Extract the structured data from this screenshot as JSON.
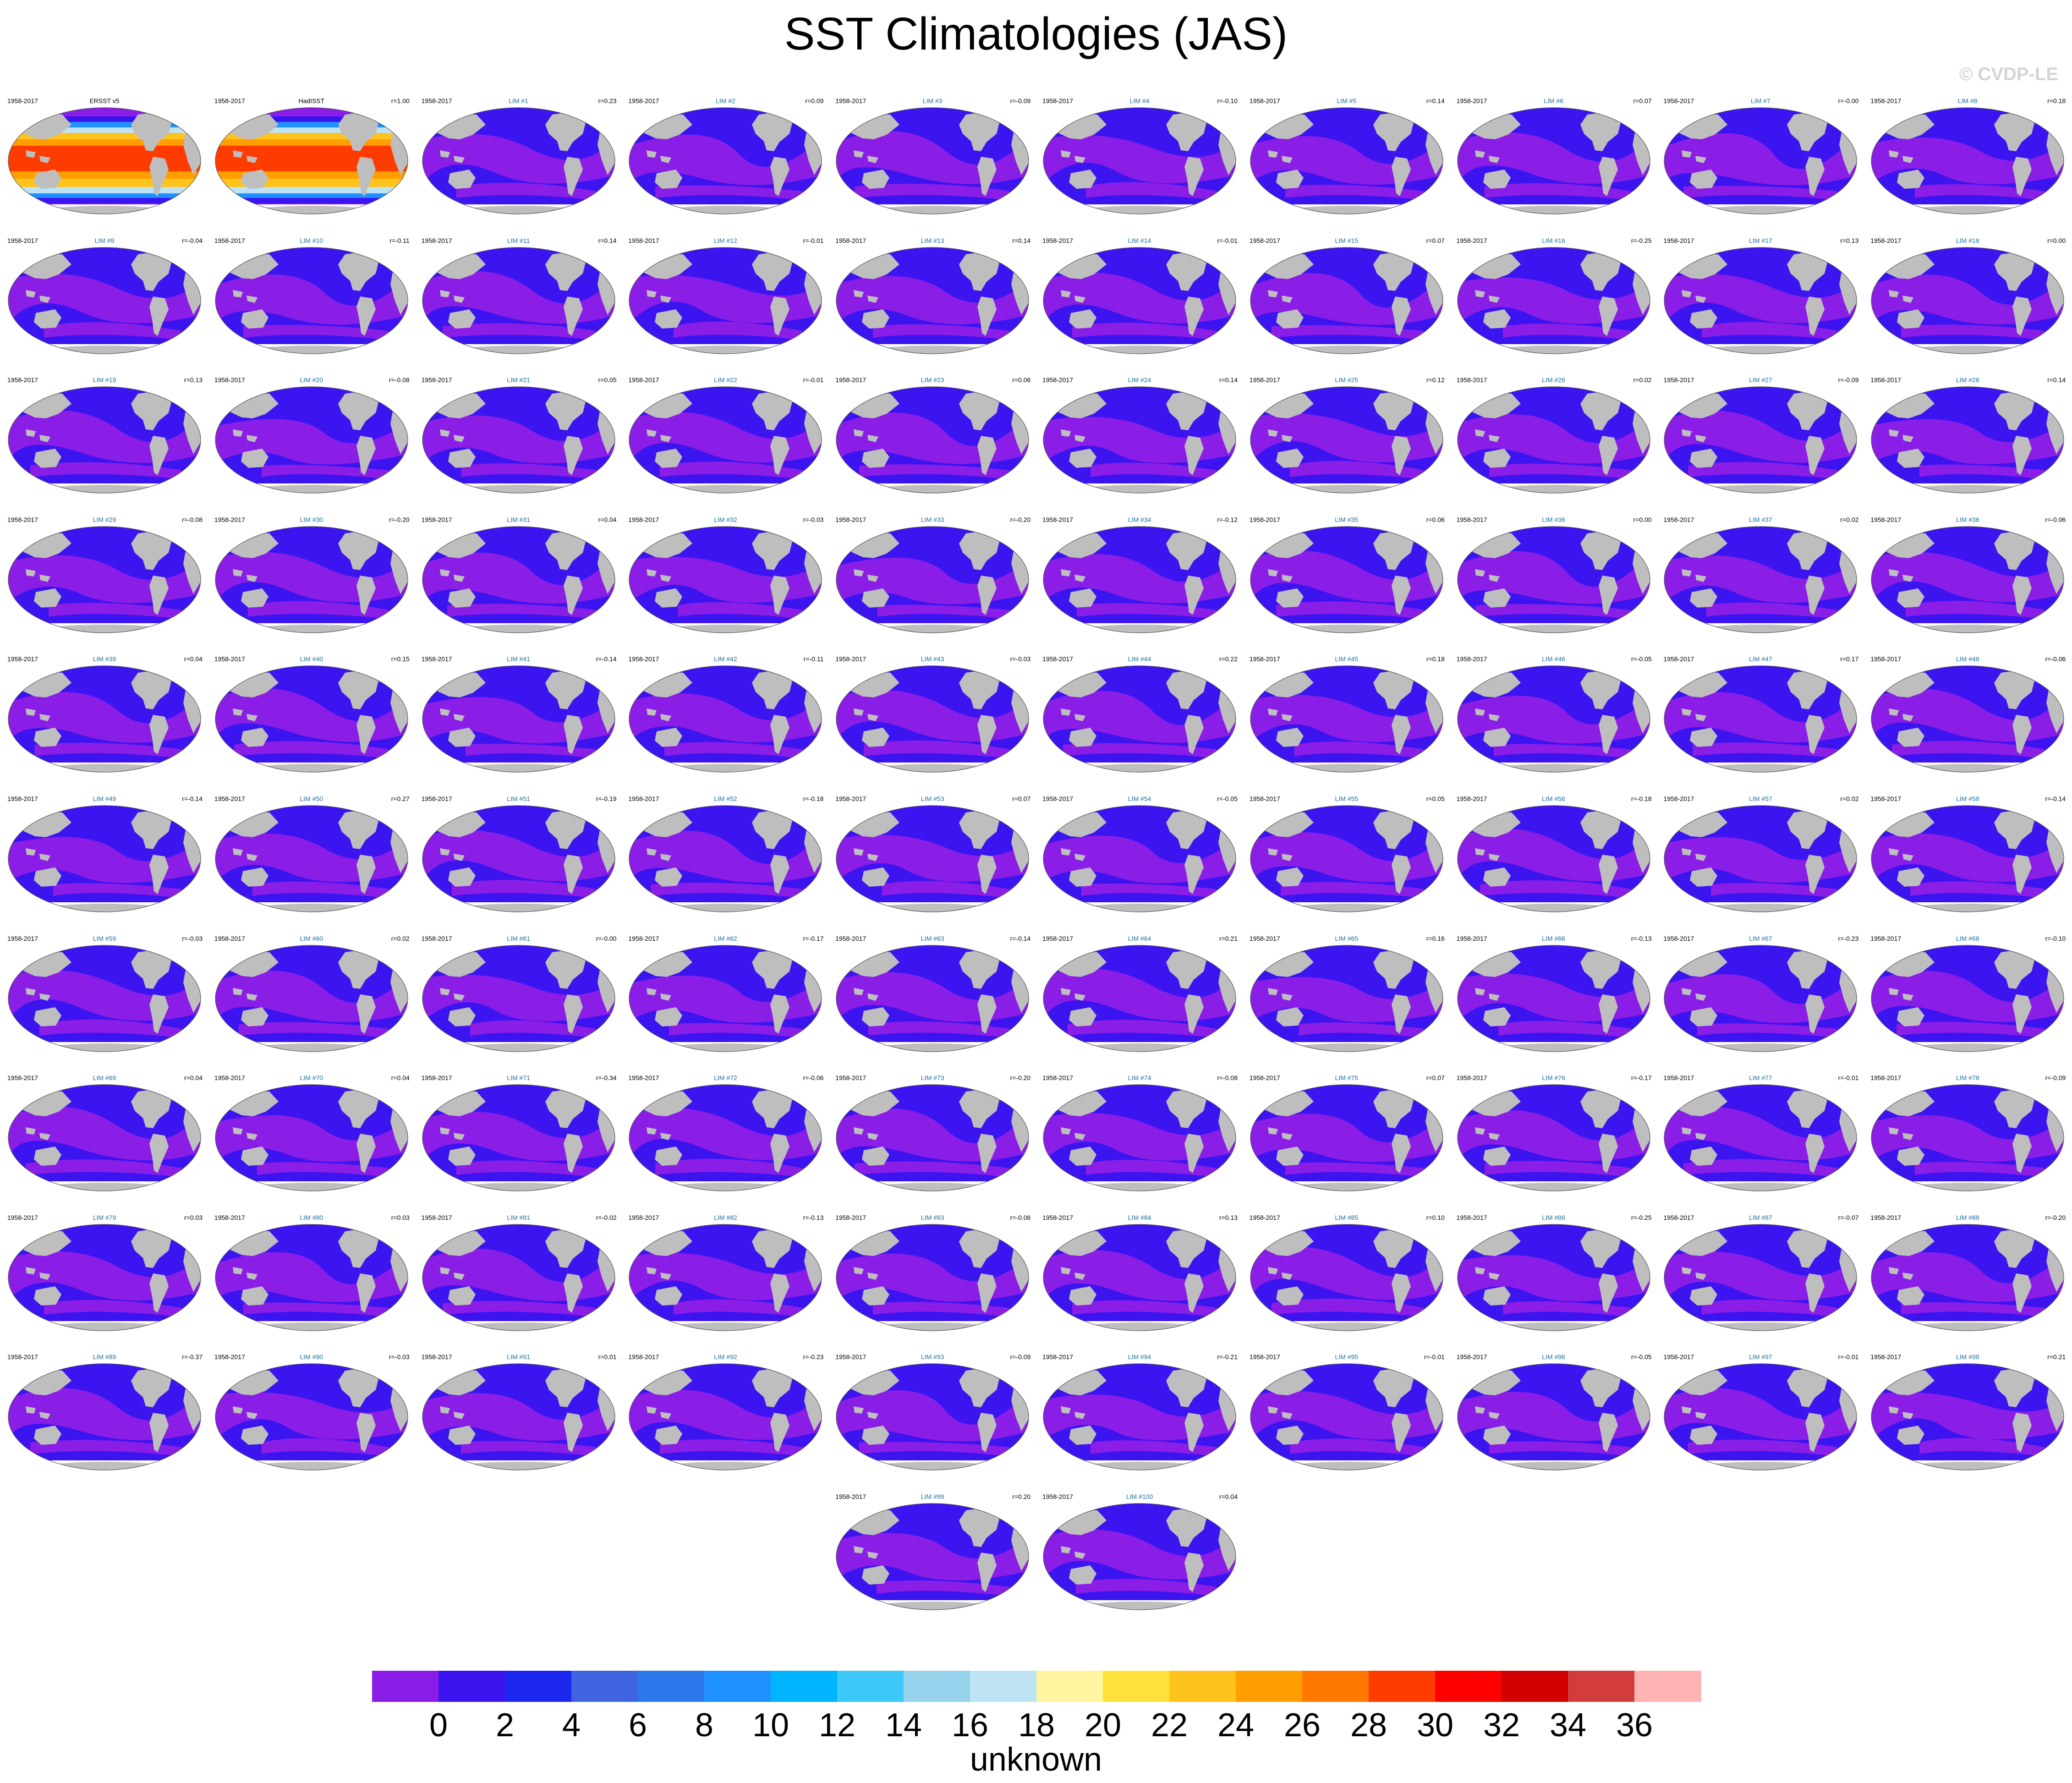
{
  "title": "SST Climatologies (JAS)",
  "watermark": "© CVDP-LE",
  "period": "1958-2017",
  "land_color": "#bebebe",
  "panels": [
    {
      "name": "ERSST v5",
      "corr": "",
      "kind": "obs"
    },
    {
      "name": "HadISST",
      "corr": "r=1.00",
      "kind": "obs"
    },
    {
      "name": "LIM #1",
      "corr": "r=0.23",
      "kind": "model"
    },
    {
      "name": "LIM #2",
      "corr": "r=0.09",
      "kind": "model"
    },
    {
      "name": "LIM #3",
      "corr": "r=-0.09",
      "kind": "model"
    },
    {
      "name": "LIM #4",
      "corr": "r=-0.10",
      "kind": "model"
    },
    {
      "name": "LIM #5",
      "corr": "r=0.14",
      "kind": "model"
    },
    {
      "name": "LIM #6",
      "corr": "r=0.07",
      "kind": "model"
    },
    {
      "name": "LIM #7",
      "corr": "r=-0.00",
      "kind": "model"
    },
    {
      "name": "LIM #8",
      "corr": "r=0.18",
      "kind": "model"
    },
    {
      "name": "LIM #9",
      "corr": "r=-0.04",
      "kind": "model"
    },
    {
      "name": "LIM #10",
      "corr": "r=-0.11",
      "kind": "model"
    },
    {
      "name": "LIM #11",
      "corr": "r=0.14",
      "kind": "model"
    },
    {
      "name": "LIM #12",
      "corr": "r=-0.01",
      "kind": "model"
    },
    {
      "name": "LIM #13",
      "corr": "r=0.14",
      "kind": "model"
    },
    {
      "name": "LIM #14",
      "corr": "r=-0.01",
      "kind": "model"
    },
    {
      "name": "LIM #15",
      "corr": "r=0.07",
      "kind": "model"
    },
    {
      "name": "LIM #16",
      "corr": "r=-0.25",
      "kind": "model"
    },
    {
      "name": "LIM #17",
      "corr": "r=0.13",
      "kind": "model"
    },
    {
      "name": "LIM #18",
      "corr": "r=0.00",
      "kind": "model"
    },
    {
      "name": "LIM #19",
      "corr": "r=0.13",
      "kind": "model"
    },
    {
      "name": "LIM #20",
      "corr": "r=-0.08",
      "kind": "model"
    },
    {
      "name": "LIM #21",
      "corr": "r=0.05",
      "kind": "model"
    },
    {
      "name": "LIM #22",
      "corr": "r=-0.01",
      "kind": "model"
    },
    {
      "name": "LIM #23",
      "corr": "r=0.06",
      "kind": "model"
    },
    {
      "name": "LIM #24",
      "corr": "r=0.14",
      "kind": "model"
    },
    {
      "name": "LIM #25",
      "corr": "r=0.12",
      "kind": "model"
    },
    {
      "name": "LIM #26",
      "corr": "r=0.02",
      "kind": "model"
    },
    {
      "name": "LIM #27",
      "corr": "r=-0.09",
      "kind": "model"
    },
    {
      "name": "LIM #28",
      "corr": "r=0.14",
      "kind": "model"
    },
    {
      "name": "LIM #29",
      "corr": "r=-0.08",
      "kind": "model"
    },
    {
      "name": "LIM #30",
      "corr": "r=-0.20",
      "kind": "model"
    },
    {
      "name": "LIM #31",
      "corr": "r=0.04",
      "kind": "model"
    },
    {
      "name": "LIM #32",
      "corr": "r=-0.03",
      "kind": "model"
    },
    {
      "name": "LIM #33",
      "corr": "r=-0.20",
      "kind": "model"
    },
    {
      "name": "LIM #34",
      "corr": "r=-0.12",
      "kind": "model"
    },
    {
      "name": "LIM #35",
      "corr": "r=0.06",
      "kind": "model"
    },
    {
      "name": "LIM #36",
      "corr": "r=0.00",
      "kind": "model"
    },
    {
      "name": "LIM #37",
      "corr": "r=0.02",
      "kind": "model"
    },
    {
      "name": "LIM #38",
      "corr": "r=-0.06",
      "kind": "model"
    },
    {
      "name": "LIM #39",
      "corr": "r=0.04",
      "kind": "model"
    },
    {
      "name": "LIM #40",
      "corr": "r=0.15",
      "kind": "model"
    },
    {
      "name": "LIM #41",
      "corr": "r=-0.14",
      "kind": "model"
    },
    {
      "name": "LIM #42",
      "corr": "r=-0.11",
      "kind": "model"
    },
    {
      "name": "LIM #43",
      "corr": "r=-0.03",
      "kind": "model"
    },
    {
      "name": "LIM #44",
      "corr": "r=0.22",
      "kind": "model"
    },
    {
      "name": "LIM #45",
      "corr": "r=0.18",
      "kind": "model"
    },
    {
      "name": "LIM #46",
      "corr": "r=-0.05",
      "kind": "model"
    },
    {
      "name": "LIM #47",
      "corr": "r=0.17",
      "kind": "model"
    },
    {
      "name": "LIM #48",
      "corr": "r=-0.06",
      "kind": "model"
    },
    {
      "name": "LIM #49",
      "corr": "r=-0.14",
      "kind": "model"
    },
    {
      "name": "LIM #50",
      "corr": "r=0.27",
      "kind": "model"
    },
    {
      "name": "LIM #51",
      "corr": "r=-0.19",
      "kind": "model"
    },
    {
      "name": "LIM #52",
      "corr": "r=-0.18",
      "kind": "model"
    },
    {
      "name": "LIM #53",
      "corr": "r=0.07",
      "kind": "model"
    },
    {
      "name": "LIM #54",
      "corr": "r=-0.05",
      "kind": "model"
    },
    {
      "name": "LIM #55",
      "corr": "r=0.05",
      "kind": "model"
    },
    {
      "name": "LIM #56",
      "corr": "r=-0.18",
      "kind": "model"
    },
    {
      "name": "LIM #57",
      "corr": "r=0.02",
      "kind": "model"
    },
    {
      "name": "LIM #58",
      "corr": "r=-0.14",
      "kind": "model"
    },
    {
      "name": "LIM #59",
      "corr": "r=-0.03",
      "kind": "model"
    },
    {
      "name": "LIM #60",
      "corr": "r=0.02",
      "kind": "model"
    },
    {
      "name": "LIM #61",
      "corr": "r=-0.00",
      "kind": "model"
    },
    {
      "name": "LIM #62",
      "corr": "r=-0.17",
      "kind": "model"
    },
    {
      "name": "LIM #63",
      "corr": "r=-0.14",
      "kind": "model"
    },
    {
      "name": "LIM #64",
      "corr": "r=0.21",
      "kind": "model"
    },
    {
      "name": "LIM #65",
      "corr": "r=0.16",
      "kind": "model"
    },
    {
      "name": "LIM #66",
      "corr": "r=-0.13",
      "kind": "model"
    },
    {
      "name": "LIM #67",
      "corr": "r=-0.23",
      "kind": "model"
    },
    {
      "name": "LIM #68",
      "corr": "r=-0.10",
      "kind": "model"
    },
    {
      "name": "LIM #69",
      "corr": "r=0.04",
      "kind": "model"
    },
    {
      "name": "LIM #70",
      "corr": "r=0.04",
      "kind": "model"
    },
    {
      "name": "LIM #71",
      "corr": "r=-0.34",
      "kind": "model"
    },
    {
      "name": "LIM #72",
      "corr": "r=-0.06",
      "kind": "model"
    },
    {
      "name": "LIM #73",
      "corr": "r=-0.20",
      "kind": "model"
    },
    {
      "name": "LIM #74",
      "corr": "r=-0.08",
      "kind": "model"
    },
    {
      "name": "LIM #75",
      "corr": "r=0.07",
      "kind": "model"
    },
    {
      "name": "LIM #76",
      "corr": "r=-0.17",
      "kind": "model"
    },
    {
      "name": "LIM #77",
      "corr": "r=-0.01",
      "kind": "model"
    },
    {
      "name": "LIM #78",
      "corr": "r=-0.09",
      "kind": "model"
    },
    {
      "name": "LIM #79",
      "corr": "r=0.03",
      "kind": "model"
    },
    {
      "name": "LIM #80",
      "corr": "r=0.03",
      "kind": "model"
    },
    {
      "name": "LIM #81",
      "corr": "r=-0.02",
      "kind": "model"
    },
    {
      "name": "LIM #82",
      "corr": "r=-0.13",
      "kind": "model"
    },
    {
      "name": "LIM #83",
      "corr": "r=-0.06",
      "kind": "model"
    },
    {
      "name": "LIM #84",
      "corr": "r=0.13",
      "kind": "model"
    },
    {
      "name": "LIM #85",
      "corr": "r=0.10",
      "kind": "model"
    },
    {
      "name": "LIM #86",
      "corr": "r=-0.25",
      "kind": "model"
    },
    {
      "name": "LIM #87",
      "corr": "r=-0.07",
      "kind": "model"
    },
    {
      "name": "LIM #88",
      "corr": "r=-0.20",
      "kind": "model"
    },
    {
      "name": "LIM #89",
      "corr": "r=-0.37",
      "kind": "model"
    },
    {
      "name": "LIM #90",
      "corr": "r=-0.03",
      "kind": "model"
    },
    {
      "name": "LIM #91",
      "corr": "r=0.01",
      "kind": "model"
    },
    {
      "name": "LIM #92",
      "corr": "r=-0.23",
      "kind": "model"
    },
    {
      "name": "LIM #93",
      "corr": "r=-0.09",
      "kind": "model"
    },
    {
      "name": "LIM #94",
      "corr": "r=-0.21",
      "kind": "model"
    },
    {
      "name": "LIM #95",
      "corr": "r=-0.01",
      "kind": "model"
    },
    {
      "name": "LIM #96",
      "corr": "r=-0.05",
      "kind": "model"
    },
    {
      "name": "LIM #97",
      "corr": "r=-0.01",
      "kind": "model"
    },
    {
      "name": "LIM #98",
      "corr": "r=0.21",
      "kind": "model"
    },
    {
      "name": "LIM #99",
      "corr": "r=0.20",
      "kind": "model"
    },
    {
      "name": "LIM #100",
      "corr": "r=0.04",
      "kind": "model"
    }
  ],
  "colorbar": {
    "label": "unknown",
    "colors": [
      "#8a1ee6",
      "#3c14f0",
      "#1c28f0",
      "#4064e0",
      "#2c78ec",
      "#1e90ff",
      "#00b4ff",
      "#3cc8f8",
      "#96d2ec",
      "#bee4f4",
      "#fff5a0",
      "#ffe13c",
      "#ffc31e",
      "#ff9e00",
      "#ff7800",
      "#ff3c00",
      "#ff0000",
      "#d20000",
      "#d23c3c",
      "#ffb4b4"
    ],
    "ticks": [
      "0",
      "2",
      "4",
      "6",
      "8",
      "10",
      "12",
      "14",
      "16",
      "18",
      "20",
      "22",
      "24",
      "26",
      "28",
      "30",
      "32",
      "34",
      "36"
    ]
  }
}
